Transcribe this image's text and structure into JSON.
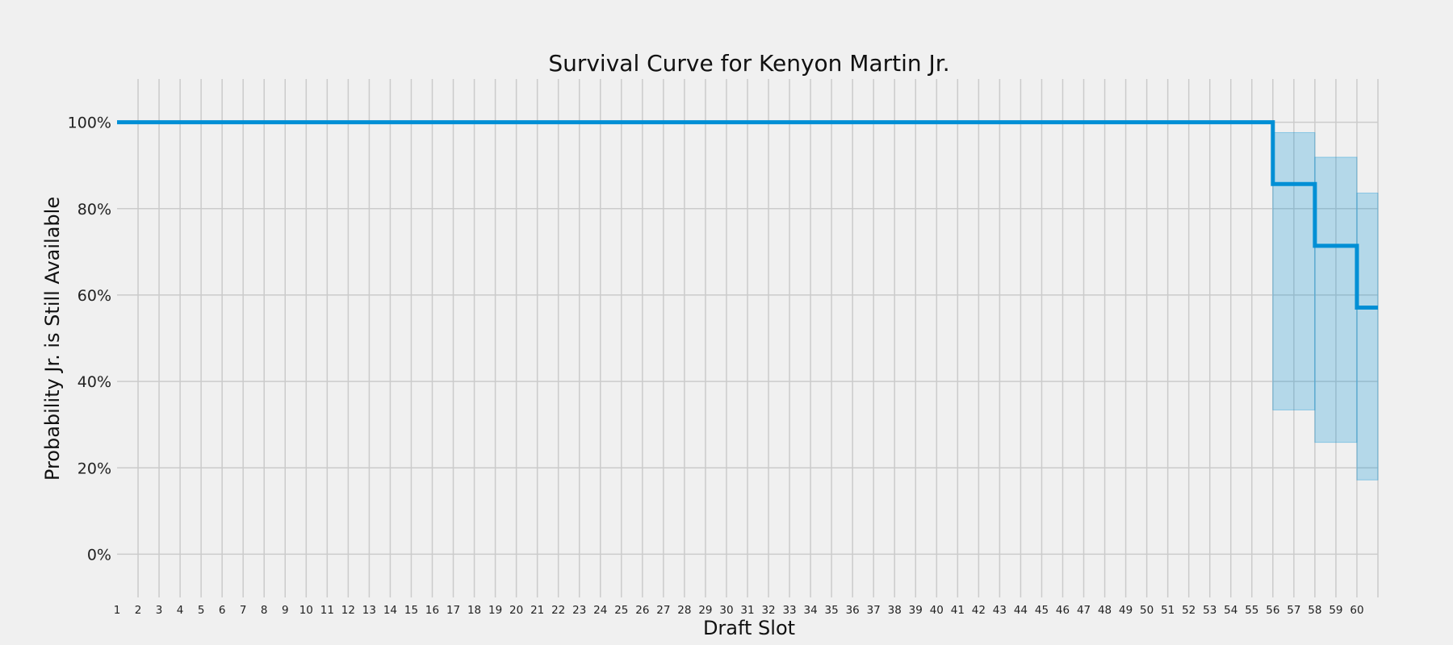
{
  "chart_data": {
    "type": "line",
    "title": "Survival Curve for Kenyon Martin Jr.",
    "xlabel": "Draft Slot",
    "ylabel": "Probability Jr. is Still Available",
    "xlim": [
      1,
      61
    ],
    "ylim": [
      -0.1,
      1.1
    ],
    "x_ticks": [
      "1",
      "2",
      "3",
      "4",
      "5",
      "6",
      "7",
      "8",
      "9",
      "10",
      "11",
      "12",
      "13",
      "14",
      "15",
      "16",
      "17",
      "18",
      "19",
      "20",
      "21",
      "22",
      "23",
      "24",
      "25",
      "26",
      "27",
      "28",
      "29",
      "30",
      "31",
      "32",
      "33",
      "34",
      "35",
      "36",
      "37",
      "38",
      "39",
      "40",
      "41",
      "42",
      "43",
      "44",
      "45",
      "46",
      "47",
      "48",
      "49",
      "50",
      "51",
      "52",
      "53",
      "54",
      "55",
      "56",
      "57",
      "58",
      "59",
      "60"
    ],
    "y_ticks": [
      {
        "value": 0,
        "label": "0%"
      },
      {
        "value": 0.2,
        "label": "20%"
      },
      {
        "value": 0.4,
        "label": "40%"
      },
      {
        "value": 0.6,
        "label": "60%"
      },
      {
        "value": 0.8,
        "label": "80%"
      },
      {
        "value": 1.0,
        "label": "100%"
      }
    ],
    "grid": true,
    "series": [
      {
        "color": "#008fd5",
        "step_x": [
          1,
          56,
          58,
          60,
          61
        ],
        "step_y": [
          1.0,
          0.857,
          0.714,
          0.571,
          0.571
        ],
        "ci_lower": [
          null,
          0.334,
          0.259,
          0.172
        ],
        "ci_upper": [
          null,
          0.976,
          0.919,
          0.836
        ]
      }
    ]
  }
}
